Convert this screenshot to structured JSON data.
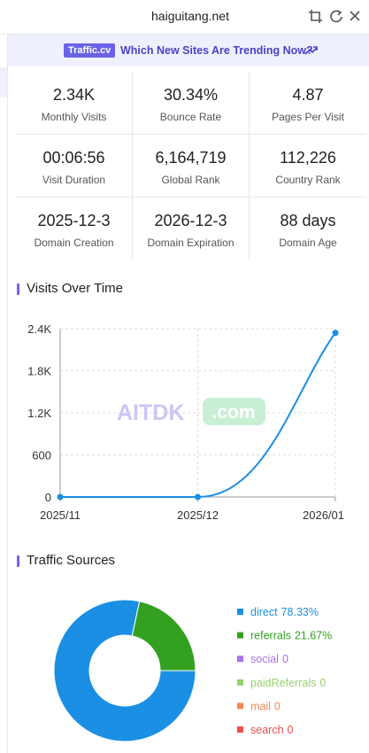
{
  "header": {
    "title": "haiguitang.net"
  },
  "banner": {
    "badge": "Traffic.cv",
    "text": "Which New Sites Are Trending Now?"
  },
  "stats": [
    {
      "value": "2.34K",
      "label": "Monthly Visits"
    },
    {
      "value": "30.34%",
      "label": "Bounce Rate"
    },
    {
      "value": "4.87",
      "label": "Pages Per Visit"
    },
    {
      "value": "00:06:56",
      "label": "Visit Duration"
    },
    {
      "value": "6,164,719",
      "label": "Global Rank"
    },
    {
      "value": "112,226",
      "label": "Country Rank"
    },
    {
      "value": "2025-12-3",
      "label": "Domain Creation"
    },
    {
      "value": "2026-12-3",
      "label": "Domain Expiration"
    },
    {
      "value": "88 days",
      "label": "Domain Age"
    }
  ],
  "watermark": {
    "brand": "AITDK",
    "suffix": ".com"
  },
  "chart_data": [
    {
      "type": "line",
      "title": "Visits Over Time",
      "categories": [
        "2025/11",
        "2025/12",
        "2026/01"
      ],
      "series": [
        {
          "name": "Visits",
          "color": "#1a8fe3",
          "values": [
            0,
            0,
            2340
          ]
        }
      ],
      "ylim": [
        0,
        2400
      ],
      "yticks": [
        0,
        600,
        {
          "value": 1200,
          "label": "1.2K"
        },
        {
          "value": 1800,
          "label": "1.8K"
        },
        {
          "value": 2400,
          "label": "2.4K"
        }
      ],
      "grid": true
    },
    {
      "type": "pie",
      "title": "Traffic Sources",
      "categories": [
        "direct",
        "referrals",
        "social",
        "paidReferrals",
        "mail",
        "search"
      ],
      "values": [
        78.33,
        21.67,
        0,
        0,
        0,
        0
      ],
      "value_labels": [
        "78.33%",
        "21.67%",
        "0",
        "0",
        "0",
        "0"
      ],
      "colors": [
        "#1a8fe3",
        "#34a020",
        "#a872ee",
        "#95d16e",
        "#f3874f",
        "#ee4c4c"
      ],
      "legend": "right"
    }
  ]
}
